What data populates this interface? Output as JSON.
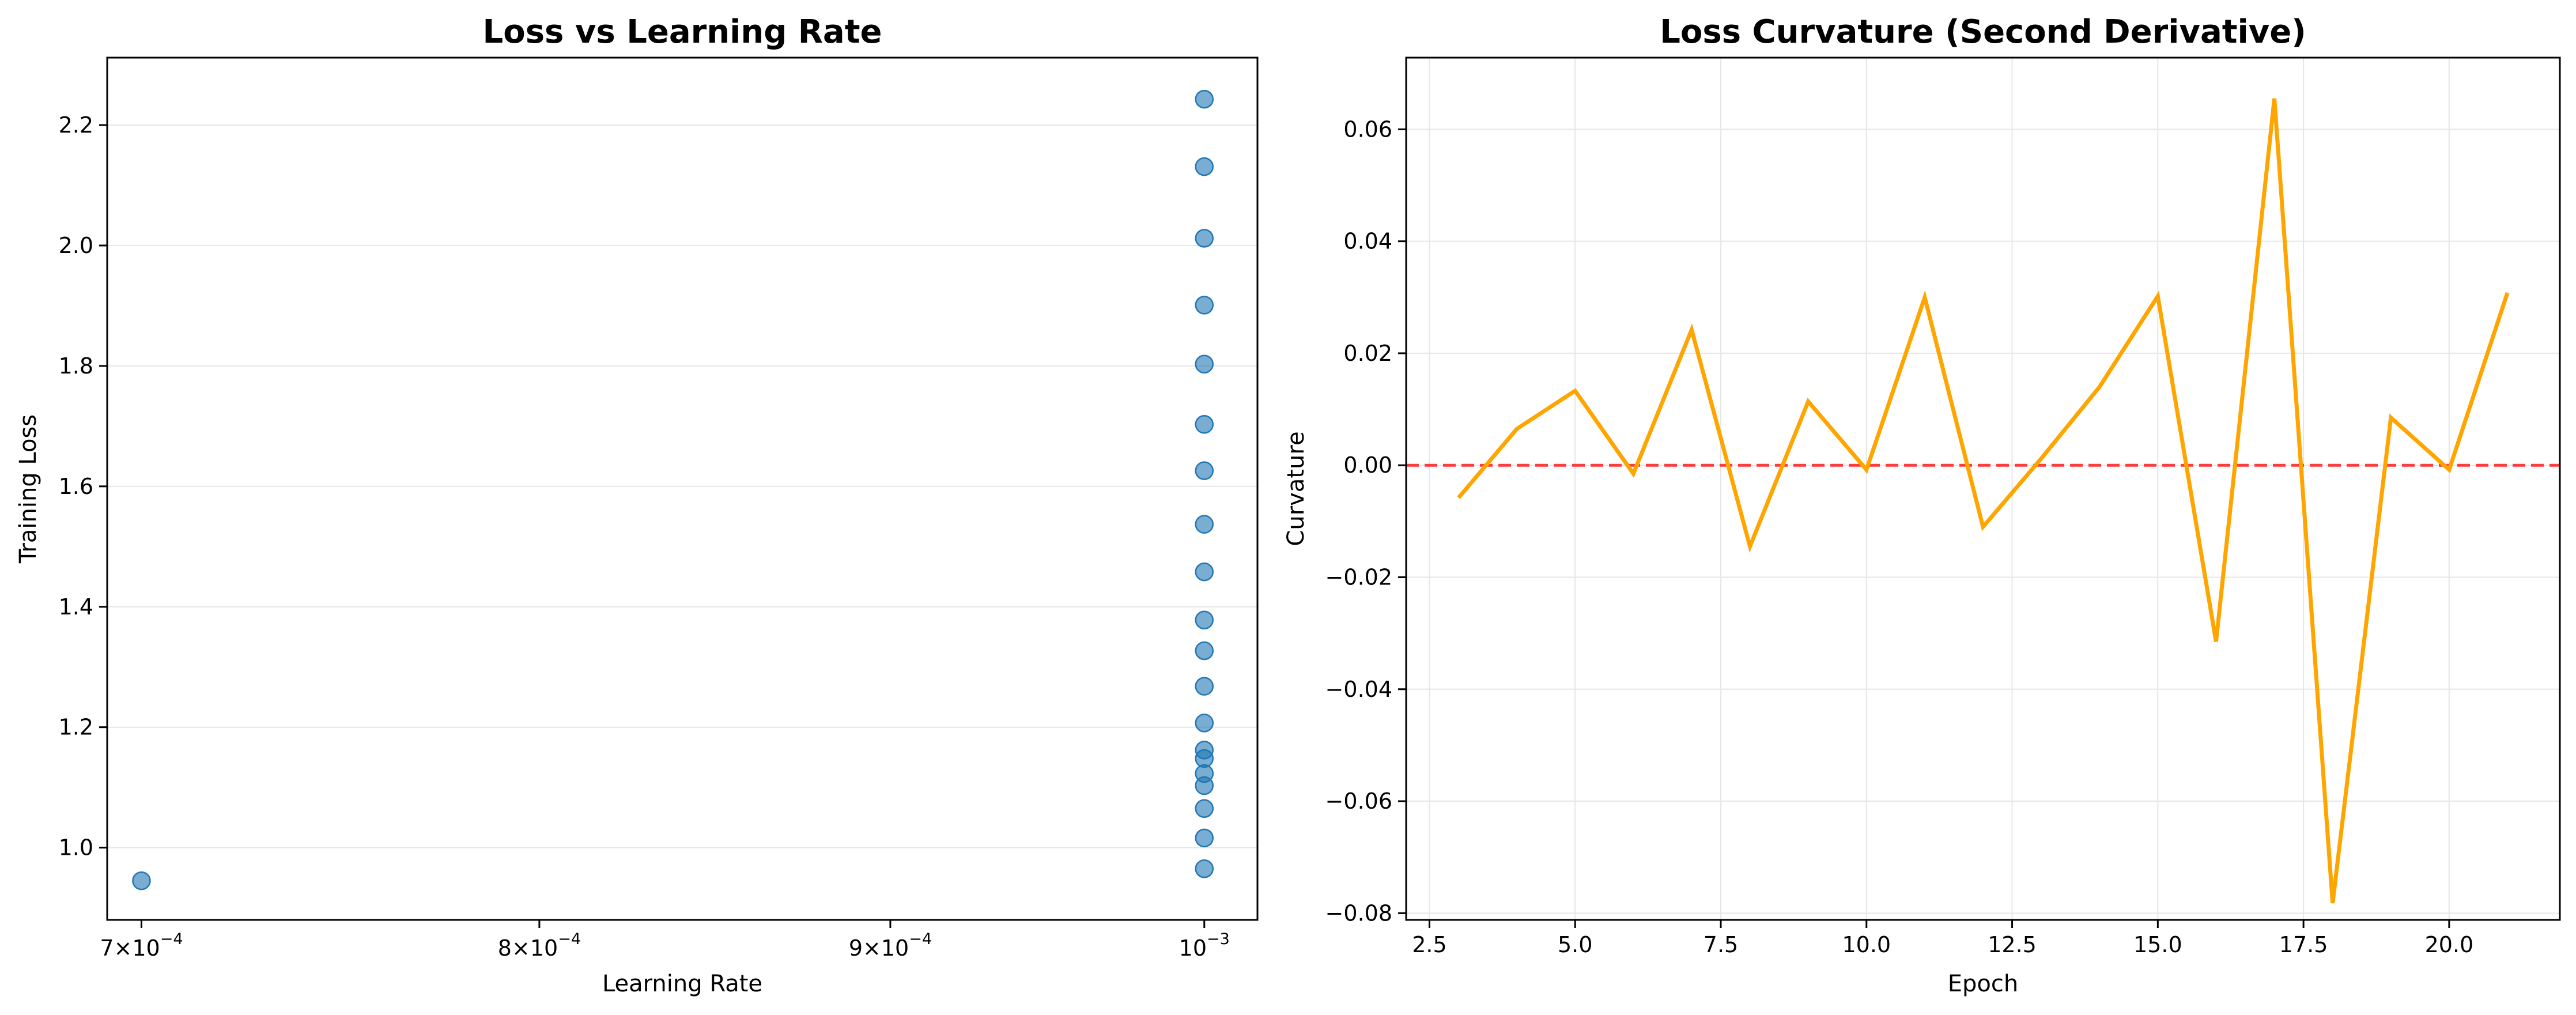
{
  "chart_data": [
    {
      "type": "scatter",
      "title": "Loss vs Learning Rate",
      "xlabel": "Learning Rate",
      "ylabel": "Training Loss",
      "x_scale": "log",
      "xlim": [
        0.000692,
        0.001018
      ],
      "ylim": [
        0.88,
        2.312
      ],
      "xticks": [
        {
          "value": 0.0007,
          "mantissa": "7",
          "base": "10",
          "exp": "−4"
        },
        {
          "value": 0.0008,
          "mantissa": "8",
          "base": "10",
          "exp": "−4"
        },
        {
          "value": 0.0009,
          "mantissa": "9",
          "base": "10",
          "exp": "−4"
        },
        {
          "value": 0.001,
          "mantissa": "",
          "base": "10",
          "exp": "−3"
        }
      ],
      "yticks": [
        1.0,
        1.2,
        1.4,
        1.6,
        1.8,
        2.0,
        2.2
      ],
      "ytick_labels": [
        "1.0",
        "1.2",
        "1.4",
        "1.6",
        "1.8",
        "2.0",
        "2.2"
      ],
      "grid": "y",
      "color": "#1f77b4",
      "points": [
        {
          "x": 0.0007,
          "y": 0.945
        },
        {
          "x": 0.001,
          "y": 2.243
        },
        {
          "x": 0.001,
          "y": 2.131
        },
        {
          "x": 0.001,
          "y": 2.012
        },
        {
          "x": 0.001,
          "y": 1.901
        },
        {
          "x": 0.001,
          "y": 1.803
        },
        {
          "x": 0.001,
          "y": 1.703
        },
        {
          "x": 0.001,
          "y": 1.626
        },
        {
          "x": 0.001,
          "y": 1.537
        },
        {
          "x": 0.001,
          "y": 1.458
        },
        {
          "x": 0.001,
          "y": 1.378
        },
        {
          "x": 0.001,
          "y": 1.327
        },
        {
          "x": 0.001,
          "y": 1.268
        },
        {
          "x": 0.001,
          "y": 1.207
        },
        {
          "x": 0.001,
          "y": 1.162
        },
        {
          "x": 0.001,
          "y": 1.148
        },
        {
          "x": 0.001,
          "y": 1.123
        },
        {
          "x": 0.001,
          "y": 1.103
        },
        {
          "x": 0.001,
          "y": 1.065
        },
        {
          "x": 0.001,
          "y": 1.016
        },
        {
          "x": 0.001,
          "y": 0.965
        }
      ]
    },
    {
      "type": "line",
      "title": "Loss Curvature (Second Derivative)",
      "xlabel": "Epoch",
      "ylabel": "Curvature",
      "xlim": [
        2.1,
        21.9
      ],
      "ylim": [
        -0.0812,
        0.0728
      ],
      "xticks": [
        2.5,
        5.0,
        7.5,
        10.0,
        12.5,
        15.0,
        17.5,
        20.0
      ],
      "xtick_labels": [
        "2.5",
        "5.0",
        "7.5",
        "10.0",
        "12.5",
        "15.0",
        "17.5",
        "20.0"
      ],
      "yticks": [
        -0.08,
        -0.06,
        -0.04,
        -0.02,
        0.0,
        0.02,
        0.04,
        0.06
      ],
      "ytick_labels": [
        "−0.08",
        "−0.06",
        "−0.04",
        "−0.02",
        "0.00",
        "0.02",
        "0.04",
        "0.06"
      ],
      "grid": "both",
      "color": "#ffa500",
      "reference_line": {
        "y": 0.0,
        "color": "#ff0000",
        "style": "dashed"
      },
      "x": [
        3,
        4,
        5,
        6,
        7,
        8,
        9,
        10,
        11,
        12,
        13,
        14,
        15,
        16,
        17,
        18,
        19,
        20,
        21
      ],
      "y": [
        -0.0058,
        0.0065,
        0.0133,
        -0.0015,
        0.0242,
        -0.0145,
        0.0114,
        -0.0008,
        0.03,
        -0.011,
        0.0012,
        0.014,
        0.0302,
        -0.0315,
        0.0655,
        -0.0782,
        0.0085,
        -0.0008,
        0.0308
      ]
    }
  ]
}
